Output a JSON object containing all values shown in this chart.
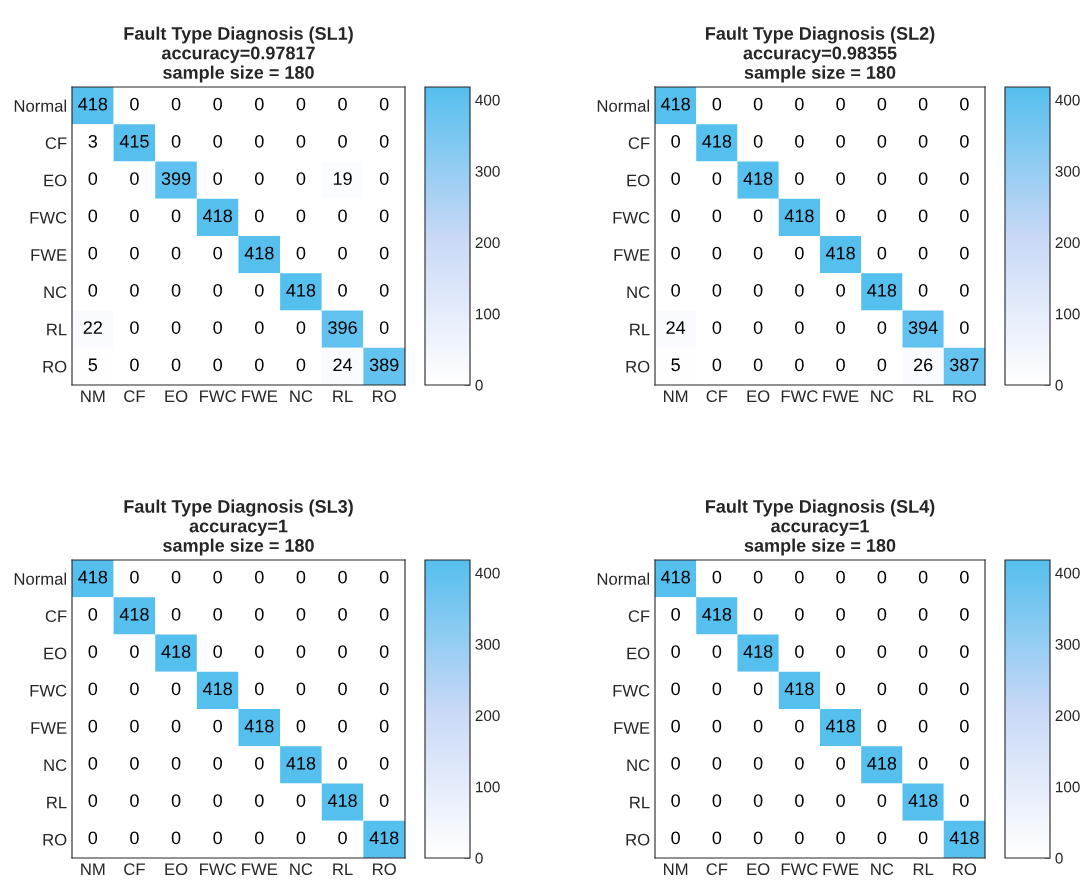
{
  "chart_data": [
    {
      "type": "heatmap",
      "title": "Fault Type Diagnosis (SL1)",
      "subtitle": "accuracy=0.97817\nsample size = 180",
      "categories": [
        "NM",
        "CF",
        "EO",
        "FWC",
        "FWE",
        "NC",
        "RL",
        "RO"
      ],
      "y_categories": [
        "Normal",
        "CF",
        "EO",
        "FWC",
        "FWE",
        "NC",
        "RL",
        "RO"
      ],
      "cells": [
        [
          418,
          0,
          0,
          0,
          0,
          0,
          0,
          0
        ],
        [
          3,
          415,
          0,
          0,
          0,
          0,
          0,
          0
        ],
        [
          0,
          0,
          399,
          0,
          0,
          0,
          19,
          0
        ],
        [
          0,
          0,
          0,
          418,
          0,
          0,
          0,
          0
        ],
        [
          0,
          0,
          0,
          0,
          418,
          0,
          0,
          0
        ],
        [
          0,
          0,
          0,
          0,
          0,
          418,
          0,
          0
        ],
        [
          22,
          0,
          0,
          0,
          0,
          0,
          396,
          0
        ],
        [
          5,
          0,
          0,
          0,
          0,
          0,
          24,
          389
        ]
      ],
      "clim": [
        0,
        418
      ],
      "cticks": [
        0,
        100,
        200,
        300,
        400
      ],
      "colors": [
        "#ffffff",
        "#c8d8f6",
        "#55bfee"
      ],
      "data_labels": true
    },
    {
      "type": "heatmap",
      "title": "Fault Type Diagnosis (SL2)",
      "subtitle": "accuracy=0.98355\nsample size = 180",
      "categories": [
        "NM",
        "CF",
        "EO",
        "FWC",
        "FWE",
        "NC",
        "RL",
        "RO"
      ],
      "y_categories": [
        "Normal",
        "CF",
        "EO",
        "FWC",
        "FWE",
        "NC",
        "RL",
        "RO"
      ],
      "cells": [
        [
          418,
          0,
          0,
          0,
          0,
          0,
          0,
          0
        ],
        [
          0,
          418,
          0,
          0,
          0,
          0,
          0,
          0
        ],
        [
          0,
          0,
          418,
          0,
          0,
          0,
          0,
          0
        ],
        [
          0,
          0,
          0,
          418,
          0,
          0,
          0,
          0
        ],
        [
          0,
          0,
          0,
          0,
          418,
          0,
          0,
          0
        ],
        [
          0,
          0,
          0,
          0,
          0,
          418,
          0,
          0
        ],
        [
          24,
          0,
          0,
          0,
          0,
          0,
          394,
          0
        ],
        [
          5,
          0,
          0,
          0,
          0,
          0,
          26,
          387
        ]
      ],
      "clim": [
        0,
        418
      ],
      "cticks": [
        0,
        100,
        200,
        300,
        400
      ],
      "colors": [
        "#ffffff",
        "#c8d8f6",
        "#55bfee"
      ],
      "data_labels": true
    },
    {
      "type": "heatmap",
      "title": "Fault Type Diagnosis (SL3)",
      "subtitle": "accuracy=1\nsample size = 180",
      "categories": [
        "NM",
        "CF",
        "EO",
        "FWC",
        "FWE",
        "NC",
        "RL",
        "RO"
      ],
      "y_categories": [
        "Normal",
        "CF",
        "EO",
        "FWC",
        "FWE",
        "NC",
        "RL",
        "RO"
      ],
      "cells": [
        [
          418,
          0,
          0,
          0,
          0,
          0,
          0,
          0
        ],
        [
          0,
          418,
          0,
          0,
          0,
          0,
          0,
          0
        ],
        [
          0,
          0,
          418,
          0,
          0,
          0,
          0,
          0
        ],
        [
          0,
          0,
          0,
          418,
          0,
          0,
          0,
          0
        ],
        [
          0,
          0,
          0,
          0,
          418,
          0,
          0,
          0
        ],
        [
          0,
          0,
          0,
          0,
          0,
          418,
          0,
          0
        ],
        [
          0,
          0,
          0,
          0,
          0,
          0,
          418,
          0
        ],
        [
          0,
          0,
          0,
          0,
          0,
          0,
          0,
          418
        ]
      ],
      "clim": [
        0,
        418
      ],
      "cticks": [
        0,
        100,
        200,
        300,
        400
      ],
      "colors": [
        "#ffffff",
        "#c8d8f6",
        "#55bfee"
      ],
      "data_labels": true
    },
    {
      "type": "heatmap",
      "title": "Fault Type Diagnosis (SL4)",
      "subtitle": "accuracy=1\nsample size = 180",
      "categories": [
        "NM",
        "CF",
        "EO",
        "FWC",
        "FWE",
        "NC",
        "RL",
        "RO"
      ],
      "y_categories": [
        "Normal",
        "CF",
        "EO",
        "FWC",
        "FWE",
        "NC",
        "RL",
        "RO"
      ],
      "cells": [
        [
          418,
          0,
          0,
          0,
          0,
          0,
          0,
          0
        ],
        [
          0,
          418,
          0,
          0,
          0,
          0,
          0,
          0
        ],
        [
          0,
          0,
          418,
          0,
          0,
          0,
          0,
          0
        ],
        [
          0,
          0,
          0,
          418,
          0,
          0,
          0,
          0
        ],
        [
          0,
          0,
          0,
          0,
          418,
          0,
          0,
          0
        ],
        [
          0,
          0,
          0,
          0,
          0,
          418,
          0,
          0
        ],
        [
          0,
          0,
          0,
          0,
          0,
          0,
          418,
          0
        ],
        [
          0,
          0,
          0,
          0,
          0,
          0,
          0,
          418
        ]
      ],
      "clim": [
        0,
        418
      ],
      "cticks": [
        0,
        100,
        200,
        300,
        400
      ],
      "colors": [
        "#ffffff",
        "#c8d8f6",
        "#55bfee"
      ],
      "data_labels": true
    }
  ]
}
